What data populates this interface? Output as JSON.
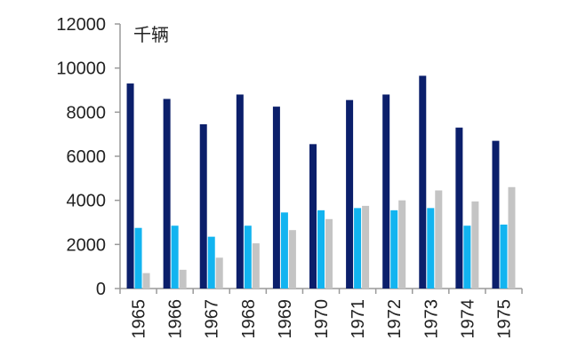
{
  "chart_data": {
    "type": "bar",
    "unit_label": "千辆",
    "categories": [
      "1965",
      "1966",
      "1967",
      "1968",
      "1969",
      "1970",
      "1971",
      "1972",
      "1973",
      "1974",
      "1975"
    ],
    "series": [
      {
        "color": "#0b1f6b",
        "values": [
          9300,
          8600,
          7450,
          8800,
          8250,
          6550,
          8550,
          8800,
          9650,
          7300,
          6700
        ]
      },
      {
        "color": "#12b4f0",
        "values": [
          2750,
          2850,
          2350,
          2850,
          3450,
          3550,
          3650,
          3550,
          3650,
          2850,
          2900
        ]
      },
      {
        "color": "#c4c4c4",
        "values": [
          700,
          850,
          1400,
          2050,
          2650,
          3150,
          3750,
          4000,
          4450,
          3950,
          4600
        ]
      }
    ],
    "y_ticks": [
      "0",
      "2000",
      "4000",
      "6000",
      "8000",
      "10000",
      "12000"
    ],
    "ylim": [
      0,
      12000
    ],
    "grid": false,
    "legend": "none"
  }
}
